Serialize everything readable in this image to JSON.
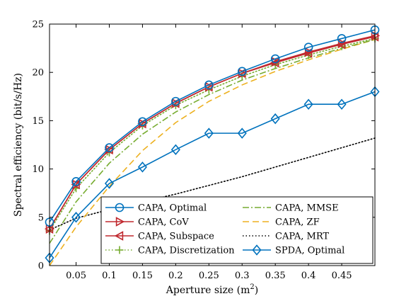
{
  "chart_data": {
    "type": "line",
    "xlabel": "Aperture size (m",
    "xlabel_sup": "2",
    "xlabel_close": ")",
    "ylabel": "Spectral efficiency (bit/s/Hz)",
    "xlim": [
      0.01,
      0.5
    ],
    "ylim": [
      0,
      25
    ],
    "xticks": [
      0.05,
      0.1,
      0.15,
      0.2,
      0.25,
      0.3,
      0.35,
      0.4,
      0.45
    ],
    "xtick_labels": [
      "0.05",
      "0.1",
      "0.15",
      "0.2",
      "0.25",
      "0.3",
      "0.35",
      "0.4",
      "0.45"
    ],
    "yticks": [
      0,
      5,
      10,
      15,
      20,
      25
    ],
    "ytick_labels": [
      "0",
      "5",
      "10",
      "15",
      "20",
      "25"
    ],
    "grid": false,
    "legend_position": "bottom-right",
    "x": [
      0.01,
      0.05,
      0.1,
      0.15,
      0.2,
      0.25,
      0.3,
      0.35,
      0.4,
      0.45,
      0.5
    ],
    "series": [
      {
        "name": "CAPA, Optimal",
        "color": "#0072BD",
        "marker": "circle",
        "dash": "solid",
        "values": [
          4.5,
          8.7,
          12.2,
          14.9,
          17.0,
          18.7,
          20.1,
          21.4,
          22.6,
          23.5,
          24.4
        ]
      },
      {
        "name": "CAPA, CoV",
        "color": "#C0282E",
        "marker": "triangle-right",
        "dash": "solid",
        "values": [
          3.8,
          8.4,
          12.0,
          14.7,
          16.8,
          18.5,
          19.9,
          21.1,
          22.1,
          23.0,
          23.8
        ]
      },
      {
        "name": "CAPA, Subspace",
        "color": "#C0282E",
        "marker": "triangle-left",
        "dash": "solid",
        "values": [
          3.8,
          8.4,
          12.0,
          14.7,
          16.8,
          18.5,
          19.9,
          21.0,
          22.0,
          22.9,
          23.7
        ]
      },
      {
        "name": "CAPA, Discretization",
        "color": "#77AC30",
        "marker": "plus",
        "dash": "dotted",
        "values": [
          3.6,
          8.0,
          11.7,
          14.5,
          16.6,
          18.2,
          19.6,
          20.8,
          21.8,
          22.7,
          23.5
        ]
      },
      {
        "name": "CAPA, MMSE",
        "color": "#77AC30",
        "marker": "none",
        "dash": "dashdot",
        "values": [
          2.3,
          6.6,
          10.6,
          13.6,
          15.9,
          17.7,
          19.2,
          20.4,
          21.5,
          22.5,
          23.4
        ]
      },
      {
        "name": "CAPA, ZF",
        "color": "#EDB120",
        "marker": "none",
        "dash": "dashed",
        "values": [
          0.0,
          4.0,
          8.2,
          11.9,
          14.8,
          17.0,
          18.7,
          20.1,
          21.3,
          22.4,
          23.4
        ]
      },
      {
        "name": "CAPA, MRT",
        "color": "#000000",
        "marker": "none",
        "dash": "dotted",
        "values": [
          3.7,
          4.9,
          5.8,
          6.6,
          7.4,
          8.3,
          9.2,
          10.2,
          11.2,
          12.2,
          13.2
        ]
      },
      {
        "name": "SPDA, Optimal",
        "color": "#0072BD",
        "marker": "diamond",
        "dash": "solid",
        "values": [
          0.8,
          5.0,
          8.5,
          10.2,
          12.0,
          13.7,
          13.7,
          15.2,
          16.7,
          16.7,
          18.0
        ]
      }
    ]
  }
}
